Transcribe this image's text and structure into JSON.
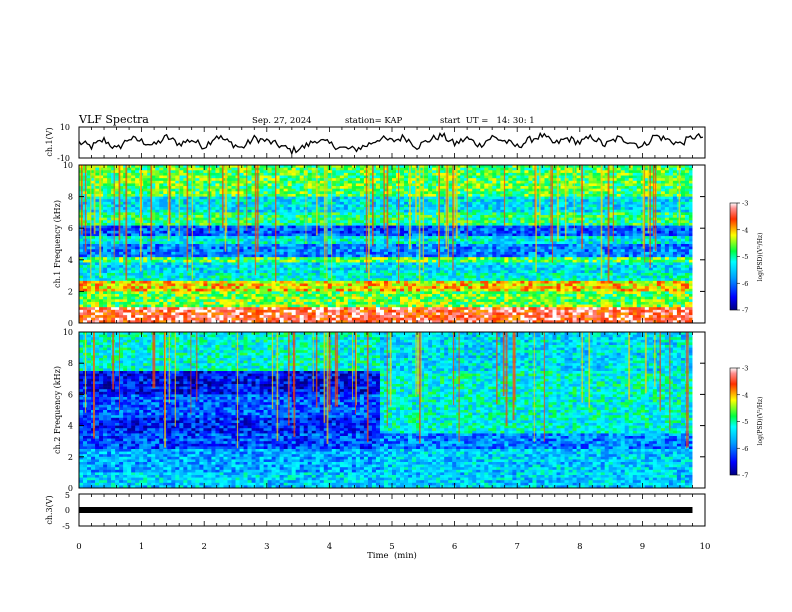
{
  "header": {
    "title": "VLF Spectra",
    "date": "Sep. 27, 2024",
    "station": "station= KAP",
    "start_ut": "start  UT =   14: 30: 1"
  },
  "colorbar": {
    "label": "log(PSD)(V²/Hz)",
    "ticks": [
      -3,
      -4,
      -5,
      -6,
      -7
    ],
    "tick_labels": [
      "-3",
      "-4",
      "-5",
      "-6",
      "-7"
    ]
  },
  "chart_data": [
    {
      "type": "line",
      "panel": "ch1-waveform",
      "ylabel": "ch.1(V)",
      "ylim": [
        -10,
        10
      ],
      "y_tick_labels": [
        "10",
        "-10"
      ],
      "xlim": [
        0,
        10
      ],
      "series": [
        {
          "x": [
            0,
            0.2,
            0.4,
            0.6,
            0.8,
            1.0,
            1.2,
            1.4,
            1.6,
            1.8,
            2.0,
            2.2,
            2.4,
            2.6,
            2.8,
            3.0,
            3.2,
            3.4,
            3.6,
            3.8,
            4.0,
            4.2,
            4.4,
            4.6,
            4.8,
            5.0,
            5.2,
            5.4,
            5.6,
            5.8,
            6.0,
            6.2,
            6.4,
            6.6,
            6.8,
            7.0,
            7.2,
            7.4,
            7.6,
            7.8,
            8.0,
            8.2,
            8.4,
            8.6,
            8.8,
            9.0,
            9.2,
            9.4,
            9.6,
            9.8
          ],
          "y": [
            0,
            -3,
            2,
            -5,
            3,
            1,
            -2,
            4,
            -1,
            2,
            -3,
            5,
            0,
            -4,
            3,
            1,
            -2,
            -6,
            -3,
            2,
            -1,
            -4,
            -5,
            -2,
            3,
            1,
            4,
            -3,
            2,
            5,
            -1,
            3,
            -2,
            4,
            1,
            -3,
            2,
            5,
            -1,
            3,
            0,
            4,
            -2,
            3,
            1,
            -3,
            5,
            2,
            -1,
            4
          ]
        }
      ]
    },
    {
      "type": "heatmap",
      "panel": "ch1-spectrogram",
      "ylabel": "ch.1 Frequency (kHz)",
      "ylim": [
        0,
        10
      ],
      "y_ticks": [
        0,
        2,
        4,
        6,
        8,
        10
      ],
      "y_tick_labels": [
        "0",
        "2",
        "4",
        "6",
        "8",
        "10"
      ],
      "xlim": [
        0,
        10
      ],
      "z_range": [
        -7,
        -3
      ],
      "freq_bands_khz": [
        {
          "f0": 0,
          "f1": 1,
          "psd": -3.4
        },
        {
          "f0": 1,
          "f1": 2,
          "psd": -4.6
        },
        {
          "f0": 2,
          "f1": 2.6,
          "psd": -4.1
        },
        {
          "f0": 2.6,
          "f1": 3.2,
          "psd": -5.2
        },
        {
          "f0": 3.2,
          "f1": 3.8,
          "psd": -5.4
        },
        {
          "f0": 3.8,
          "f1": 4.2,
          "psd": -4.7
        },
        {
          "f0": 4.2,
          "f1": 5,
          "psd": -5.9
        },
        {
          "f0": 5,
          "f1": 5.5,
          "psd": -5.3
        },
        {
          "f0": 5.5,
          "f1": 6.2,
          "psd": -6.1
        },
        {
          "f0": 6.2,
          "f1": 7,
          "psd": -4.9
        },
        {
          "f0": 7,
          "f1": 8,
          "psd": -5.4
        },
        {
          "f0": 8,
          "f1": 10,
          "psd": -4.7
        }
      ]
    },
    {
      "type": "heatmap",
      "panel": "ch2-spectrogram",
      "ylabel": "ch.2 Frequency (kHz)",
      "ylim": [
        0,
        10
      ],
      "y_ticks": [
        0,
        2,
        4,
        6,
        8,
        10
      ],
      "y_tick_labels": [
        "0",
        "2",
        "4",
        "6",
        "8",
        "10"
      ],
      "xlim": [
        0,
        10
      ],
      "z_range": [
        -7,
        -3
      ],
      "regime_change_minute": 4.8,
      "freq_bands_khz_before": [
        {
          "f0": 0,
          "f1": 1,
          "psd": -5.5
        },
        {
          "f0": 1,
          "f1": 2.5,
          "psd": -5.7
        },
        {
          "f0": 2.5,
          "f1": 3.5,
          "psd": -6.2
        },
        {
          "f0": 3.5,
          "f1": 4.5,
          "psd": -6.4
        },
        {
          "f0": 4.5,
          "f1": 6,
          "psd": -6.1
        },
        {
          "f0": 6,
          "f1": 7.5,
          "psd": -6.5
        },
        {
          "f0": 7.5,
          "f1": 10,
          "psd": -5.2
        }
      ],
      "freq_bands_khz_after": [
        {
          "f0": 0,
          "f1": 1,
          "psd": -5.5
        },
        {
          "f0": 1,
          "f1": 2.5,
          "psd": -5.5
        },
        {
          "f0": 2.5,
          "f1": 3.5,
          "psd": -5.9
        },
        {
          "f0": 3.5,
          "f1": 7.5,
          "psd": -5.2
        },
        {
          "f0": 7.5,
          "f1": 10,
          "psd": -5.4
        }
      ]
    },
    {
      "type": "line",
      "panel": "ch3-waveform",
      "ylabel": "ch.3(V)",
      "ylim": [
        -5,
        5
      ],
      "y_tick_labels": [
        "5",
        "0",
        "-5"
      ],
      "xlim": [
        0,
        10
      ],
      "xlabel": "Time  (min)",
      "x_ticks": [
        0,
        1,
        2,
        3,
        4,
        5,
        6,
        7,
        8,
        9,
        10
      ],
      "x_tick_labels": [
        "0",
        "1",
        "2",
        "3",
        "4",
        "5",
        "6",
        "7",
        "8",
        "9",
        "10"
      ],
      "series": [
        {
          "x": [
            0,
            9.8
          ],
          "y": [
            0,
            0
          ]
        }
      ]
    }
  ]
}
